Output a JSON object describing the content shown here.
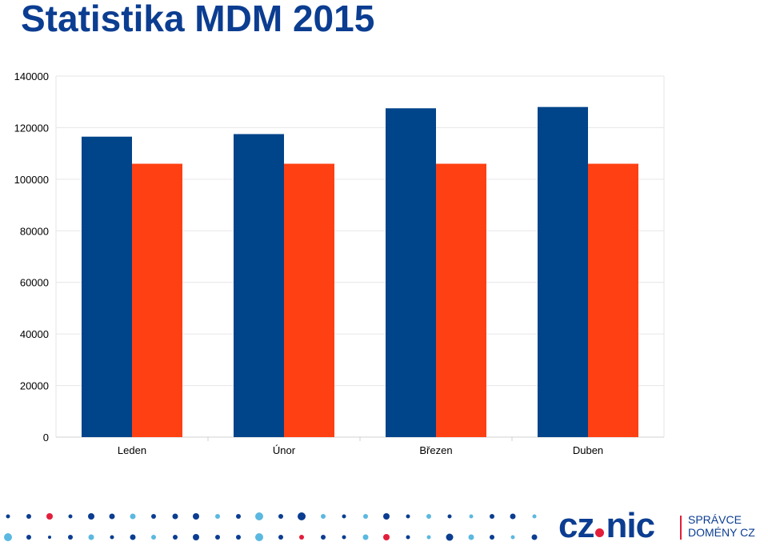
{
  "page": {
    "title": "Statistika MDM 2015"
  },
  "chart_data": {
    "type": "bar",
    "title": "Statistika MDM 2015",
    "categories": [
      "Leden",
      "Únor",
      "Březen",
      "Duben"
    ],
    "series": [
      {
        "values": [
          116500,
          117500,
          127500,
          128000
        ],
        "color": "#00448a"
      },
      {
        "values": [
          106000,
          106000,
          106000,
          106000
        ],
        "color": "#ff4013"
      }
    ],
    "ylim": [
      0,
      140000
    ],
    "yticks": [
      "0",
      "20000",
      "40000",
      "60000",
      "80000",
      "100000",
      "120000",
      "140000"
    ],
    "grid": true
  },
  "footer": {
    "logo_main": "cz",
    "logo_main_2": "nic",
    "logo_sub_1": "SPRÁVCE",
    "logo_sub_2": "DOMÉNY CZ",
    "colors": {
      "brand": "#0b3d91",
      "accent": "#e31e3a",
      "light": "#5bb8e0"
    }
  }
}
